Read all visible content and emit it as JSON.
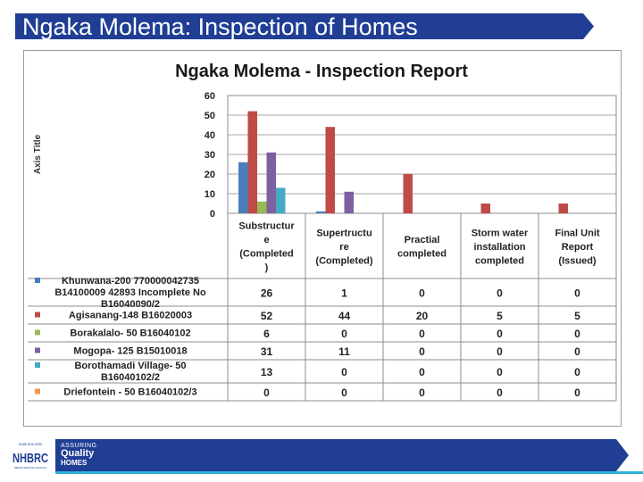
{
  "slide": {
    "title": "Ngaka Molema:  Inspection of Homes"
  },
  "footer": {
    "tagline_line1": "ASSURING",
    "tagline_line2": "Quality",
    "tagline_line3": "HOMES",
    "logo_text": "NHBRC",
    "logo_subtext_top": "HOME BUILDERS",
    "logo_subtext_bottom": "REGISTRATION COUNCIL"
  },
  "colors": {
    "title_bar": "#1f3e94",
    "footer_band": "#1f3e94",
    "accent_bar": "#2cb3d8"
  },
  "chart_data": {
    "type": "bar",
    "title": "Ngaka Molema - Inspection Report",
    "ylabel": "Axis Title",
    "ylim": [
      0,
      60
    ],
    "yticks": [
      0,
      10,
      20,
      30,
      40,
      50,
      60
    ],
    "grid": true,
    "legend_placement": "left-table",
    "categories": [
      [
        "Substructur",
        "e",
        "(Completed",
        ")"
      ],
      [
        "Supertructu",
        "re",
        "(Completed)"
      ],
      [
        "Practial",
        "completed"
      ],
      [
        "Storm water",
        "installation",
        "completed"
      ],
      [
        "Final Unit",
        "Report",
        "(Issued)"
      ]
    ],
    "series": [
      {
        "name": "Khunwana-200 770000042735 B14100009 42893 Incomplete No B16040090/2",
        "label_lines": [
          "Khunwana-200 770000042735",
          "B14100009 42893 Incomplete No",
          "B16040090/2"
        ],
        "color": "#4a7ebb",
        "values": [
          26,
          1,
          0,
          0,
          0
        ]
      },
      {
        "name": "Agisanang-148 B16020003",
        "label_lines": [
          "Agisanang-148 B16020003"
        ],
        "color": "#be4b48",
        "values": [
          52,
          44,
          20,
          5,
          5
        ]
      },
      {
        "name": "Borakalalo- 50 B16040102",
        "label_lines": [
          "Borakalalo- 50 B16040102"
        ],
        "color": "#98b954",
        "values": [
          6,
          0,
          0,
          0,
          0
        ]
      },
      {
        "name": "Mogopa- 125 B15010018",
        "label_lines": [
          "Mogopa- 125 B15010018"
        ],
        "color": "#7d60a0",
        "values": [
          31,
          11,
          0,
          0,
          0
        ]
      },
      {
        "name": "Borothamadi Village- 50 B16040102/2",
        "label_lines": [
          "Borothamadi Village- 50",
          "B16040102/2"
        ],
        "color": "#46aac5",
        "values": [
          13,
          0,
          0,
          0,
          0
        ]
      },
      {
        "name": "Driefontein - 50 B16040102/3",
        "label_lines": [
          "Driefontein - 50 B16040102/3"
        ],
        "color": "#f79646",
        "values": [
          0,
          0,
          0,
          0,
          0
        ]
      }
    ]
  }
}
